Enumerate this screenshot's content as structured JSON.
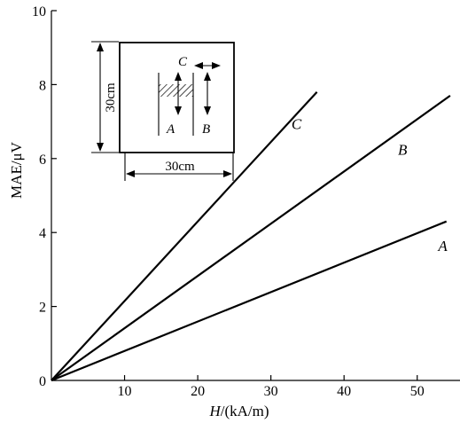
{
  "chart_data": {
    "type": "line",
    "title": "",
    "xlabel_prefix": "H",
    "xlabel_suffix": "/(kA/m)",
    "ylabel": "MAE/μV",
    "xlim": [
      0,
      55
    ],
    "ylim": [
      0,
      10
    ],
    "x_ticks": [
      10,
      20,
      30,
      40,
      50
    ],
    "y_ticks": [
      0,
      2,
      4,
      6,
      8,
      10
    ],
    "x_tick_labels": [
      "10",
      "20",
      "30",
      "40",
      "50"
    ],
    "y_tick_labels": [
      "0",
      "2",
      "4",
      "6",
      "8",
      "10"
    ],
    "grid": false,
    "legend": "none",
    "series": [
      {
        "name": "A",
        "x": [
          0,
          54
        ],
        "y": [
          0,
          4.3
        ],
        "label_at": [
          53.5,
          3.5
        ]
      },
      {
        "name": "B",
        "x": [
          0,
          54.5
        ],
        "y": [
          0,
          7.7
        ],
        "label_at": [
          48,
          6.1
        ]
      },
      {
        "name": "C",
        "x": [
          0,
          36.3
        ],
        "y": [
          0,
          7.8
        ],
        "label_at": [
          33.5,
          6.8
        ]
      }
    ]
  },
  "inset": {
    "height_label": "30cm",
    "width_label": "30cm",
    "labels": {
      "a": "A",
      "b": "B",
      "c": "C"
    }
  }
}
